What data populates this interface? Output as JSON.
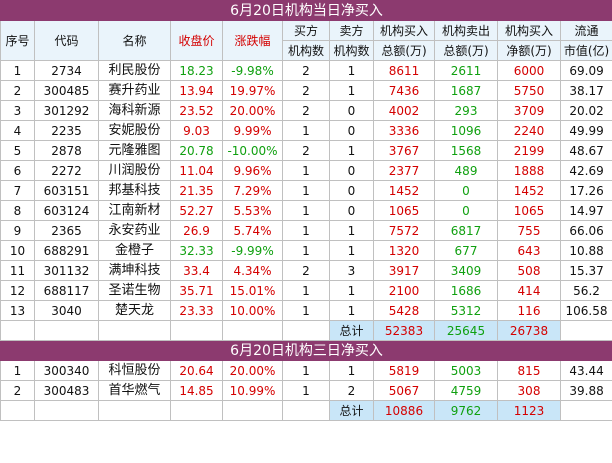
{
  "section1": {
    "title": "6月20日机构当日净买入",
    "headers": {
      "seq": "序号",
      "code": "代码",
      "name": "名称",
      "close": "收盘价",
      "change": "涨跌幅",
      "buy_top": "买方",
      "buy_bottom": "机构数",
      "sell_top": "卖方",
      "sell_bottom": "机构数",
      "buyamt_top": "机构买入",
      "buyamt_bottom": "总额(万)",
      "sellamt_top": "机构卖出",
      "sellamt_bottom": "总额(万)",
      "net_top": "机构买入",
      "net_bottom": "净额(万)",
      "cap_top": "流通",
      "cap_bottom": "市值(亿)"
    },
    "rows": [
      {
        "seq": "1",
        "code": "2734",
        "name": "利民股份",
        "close": "18.23",
        "change": "-9.98%",
        "buy": "2",
        "sell": "1",
        "buy_amt": "8611",
        "sell_amt": "2611",
        "net": "6000",
        "cap": "69.09",
        "dir": "down"
      },
      {
        "seq": "2",
        "code": "300485",
        "name": "赛升药业",
        "close": "13.94",
        "change": "19.97%",
        "buy": "2",
        "sell": "1",
        "buy_amt": "7436",
        "sell_amt": "1687",
        "net": "5750",
        "cap": "38.17",
        "dir": "up"
      },
      {
        "seq": "3",
        "code": "301292",
        "name": "海科新源",
        "close": "23.52",
        "change": "20.00%",
        "buy": "2",
        "sell": "0",
        "buy_amt": "4002",
        "sell_amt": "293",
        "net": "3709",
        "cap": "20.02",
        "dir": "up"
      },
      {
        "seq": "4",
        "code": "2235",
        "name": "安妮股份",
        "close": "9.03",
        "change": "9.99%",
        "buy": "1",
        "sell": "0",
        "buy_amt": "3336",
        "sell_amt": "1096",
        "net": "2240",
        "cap": "49.99",
        "dir": "up"
      },
      {
        "seq": "5",
        "code": "2878",
        "name": "元隆雅图",
        "close": "20.78",
        "change": "-10.00%",
        "buy": "2",
        "sell": "1",
        "buy_amt": "3767",
        "sell_amt": "1568",
        "net": "2199",
        "cap": "48.67",
        "dir": "down"
      },
      {
        "seq": "6",
        "code": "2272",
        "name": "川润股份",
        "close": "11.04",
        "change": "9.96%",
        "buy": "1",
        "sell": "0",
        "buy_amt": "2377",
        "sell_amt": "489",
        "net": "1888",
        "cap": "42.69",
        "dir": "up"
      },
      {
        "seq": "7",
        "code": "603151",
        "name": "邦基科技",
        "close": "21.35",
        "change": "7.29%",
        "buy": "1",
        "sell": "0",
        "buy_amt": "1452",
        "sell_amt": "0",
        "net": "1452",
        "cap": "17.26",
        "dir": "up"
      },
      {
        "seq": "8",
        "code": "603124",
        "name": "江南新材",
        "close": "52.27",
        "change": "5.53%",
        "buy": "1",
        "sell": "0",
        "buy_amt": "1065",
        "sell_amt": "0",
        "net": "1065",
        "cap": "14.97",
        "dir": "up"
      },
      {
        "seq": "9",
        "code": "2365",
        "name": "永安药业",
        "close": "26.9",
        "change": "5.74%",
        "buy": "1",
        "sell": "1",
        "buy_amt": "7572",
        "sell_amt": "6817",
        "net": "755",
        "cap": "66.06",
        "dir": "up"
      },
      {
        "seq": "10",
        "code": "688291",
        "name": "金橙子",
        "close": "32.33",
        "change": "-9.99%",
        "buy": "1",
        "sell": "1",
        "buy_amt": "1320",
        "sell_amt": "677",
        "net": "643",
        "cap": "10.88",
        "dir": "down"
      },
      {
        "seq": "11",
        "code": "301132",
        "name": "满坤科技",
        "close": "33.4",
        "change": "4.34%",
        "buy": "2",
        "sell": "3",
        "buy_amt": "3917",
        "sell_amt": "3409",
        "net": "508",
        "cap": "15.37",
        "dir": "up"
      },
      {
        "seq": "12",
        "code": "688117",
        "name": "圣诺生物",
        "close": "35.71",
        "change": "15.01%",
        "buy": "1",
        "sell": "1",
        "buy_amt": "2100",
        "sell_amt": "1686",
        "net": "414",
        "cap": "56.2",
        "dir": "up"
      },
      {
        "seq": "13",
        "code": "3040",
        "name": "楚天龙",
        "close": "23.33",
        "change": "10.00%",
        "buy": "1",
        "sell": "1",
        "buy_amt": "5428",
        "sell_amt": "5312",
        "net": "116",
        "cap": "106.58",
        "dir": "up"
      }
    ],
    "total": {
      "label": "总计",
      "buy_amt": "52383",
      "sell_amt": "25645",
      "net": "26738"
    }
  },
  "section2": {
    "title": "6月20日机构三日净买入",
    "rows": [
      {
        "seq": "1",
        "code": "300340",
        "name": "科恒股份",
        "close": "20.64",
        "change": "20.00%",
        "buy": "1",
        "sell": "1",
        "buy_amt": "5819",
        "sell_amt": "5003",
        "net": "815",
        "cap": "43.44",
        "dir": "up"
      },
      {
        "seq": "2",
        "code": "300483",
        "name": "首华燃气",
        "close": "14.85",
        "change": "10.99%",
        "buy": "1",
        "sell": "2",
        "buy_amt": "5067",
        "sell_amt": "4759",
        "net": "308",
        "cap": "39.88",
        "dir": "up"
      }
    ],
    "total": {
      "label": "总计",
      "buy_amt": "10886",
      "sell_amt": "9762",
      "net": "1123"
    }
  },
  "colors": {
    "title_bg": "#8c3a6f",
    "header_bg": "#eaf4fb",
    "total_bg": "#c9e6f8",
    "up": "#d40000",
    "down": "#10a010"
  }
}
